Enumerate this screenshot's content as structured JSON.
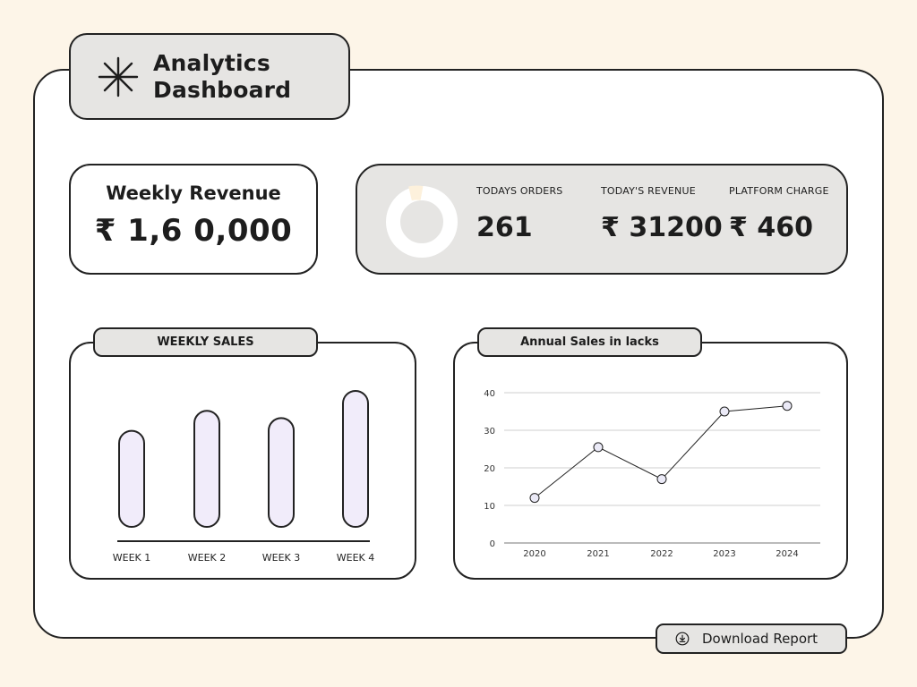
{
  "header": {
    "title": "Analytics\nDashboard",
    "icon": "asterisk-icon"
  },
  "weekly_revenue": {
    "label": "Weekly Revenue",
    "value": "₹ 1,6 0,000"
  },
  "today_stats": {
    "orders_label": "TODAYS ORDERS",
    "orders_value": "261",
    "revenue_label": "TODAY'S REVENUE",
    "revenue_value": "₹ 31200",
    "charge_label": "PLATFORM CHARGE",
    "charge_value": "₹ 460"
  },
  "weekly_sales": {
    "title": "WEEKLY SALES"
  },
  "annual_sales": {
    "title": "Annual Sales  in lacks"
  },
  "download": {
    "label": "Download Report",
    "icon": "download-icon"
  },
  "colors": {
    "background": "#fdf5e8",
    "panel": "#ffffff",
    "card_gray": "#e6e5e3",
    "bar_fill": "#f1ecfa",
    "outline": "#222222"
  },
  "chart_data": [
    {
      "type": "bar",
      "title": "WEEKLY SALES",
      "categories": [
        "WEEK 1",
        "WEEK 2",
        "WEEK 3",
        "WEEK 4"
      ],
      "values": [
        53,
        64,
        60,
        75
      ],
      "ylim": [
        0,
        75
      ],
      "grid": false,
      "axis_labels_visible": false
    },
    {
      "type": "line",
      "title": "Annual Sales  in lacks",
      "x": [
        "2020",
        "2021",
        "2022",
        "2023",
        "2024"
      ],
      "values": [
        12,
        25.5,
        17,
        35,
        36.5
      ],
      "yticks": [
        0,
        10,
        20,
        30,
        40
      ],
      "ylim": [
        0,
        40
      ],
      "grid": true
    }
  ]
}
